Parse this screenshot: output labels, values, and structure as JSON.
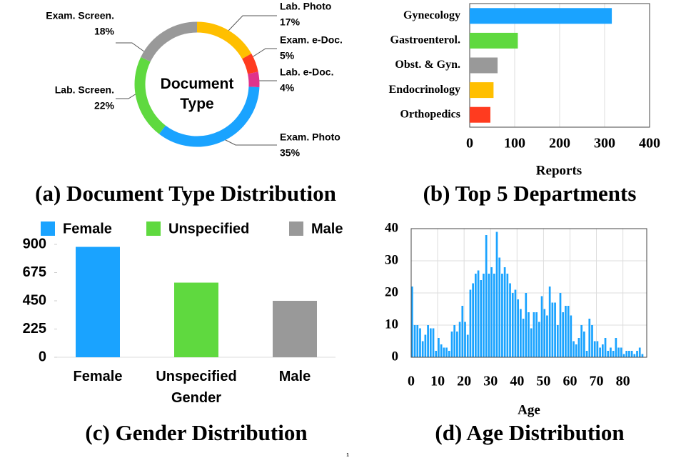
{
  "chart_data": [
    {
      "type": "pie",
      "title": "(a) Document Type Distribution",
      "center_text": "Document Type",
      "categories": [
        "Lab. Photo",
        "Exam. e-Doc.",
        "Lab. e-Doc.",
        "Exam. Photo",
        "Lab. Screen.",
        "Exam. Screen."
      ],
      "values": [
        17,
        5,
        4,
        35,
        22,
        18
      ],
      "value_labels": [
        "17%",
        "5%",
        "4%",
        "35%",
        "22%",
        "18%"
      ],
      "colors": [
        "#ffbf00",
        "#ff3b1f",
        "#e0338c",
        "#1aa3ff",
        "#5fd93f",
        "#999999"
      ]
    },
    {
      "type": "hbar",
      "title": "(b) Top 5 Departments",
      "xlabel": "Reports",
      "categories": [
        "Gynecology",
        "Gastroenterol.",
        "Obst. & Gyn.",
        "Endocrinology",
        "Orthopedics"
      ],
      "values": [
        316,
        107,
        62,
        53,
        46
      ],
      "colors": [
        "#1aa3ff",
        "#5fd93f",
        "#999999",
        "#ffbf00",
        "#ff3b1f"
      ],
      "xlim": [
        0,
        400
      ],
      "xticks": [
        0,
        100,
        200,
        300,
        400
      ],
      "grid": true
    },
    {
      "type": "bar",
      "title": "(c) Gender Distribution",
      "categories": [
        "Female",
        "Unspecified Gender",
        "Male"
      ],
      "values": [
        880,
        595,
        450
      ],
      "colors": [
        "#1aa3ff",
        "#5fd93f",
        "#999999"
      ],
      "legend": [
        "Female",
        "Unspecified",
        "Male"
      ],
      "ylim": [
        0,
        900
      ],
      "yticks": [
        0,
        225,
        450,
        675,
        900
      ]
    },
    {
      "type": "histogram",
      "title": "(d) Age Distribution",
      "xlabel": "Age",
      "color": "#1aa3ff",
      "bins": [
        0,
        1,
        2,
        3,
        4,
        5,
        6,
        7,
        8,
        9,
        10,
        11,
        12,
        13,
        14,
        15,
        16,
        17,
        18,
        19,
        20,
        21,
        22,
        23,
        24,
        25,
        26,
        27,
        28,
        29,
        30,
        31,
        32,
        33,
        34,
        35,
        36,
        37,
        38,
        39,
        40,
        41,
        42,
        43,
        44,
        45,
        46,
        47,
        48,
        49,
        50,
        51,
        52,
        53,
        54,
        55,
        56,
        57,
        58,
        59,
        60,
        61,
        62,
        63,
        64,
        65,
        66,
        67,
        68,
        69,
        70,
        71,
        72,
        73,
        74,
        75,
        76,
        77,
        78,
        79,
        80,
        81,
        82,
        83,
        84,
        85,
        86,
        87,
        88
      ],
      "values": [
        22,
        10,
        10,
        9,
        5,
        7,
        10,
        9,
        9,
        2,
        6,
        4,
        3,
        3,
        2,
        8,
        10,
        8,
        11,
        16,
        11,
        7,
        21,
        23,
        26,
        27,
        24,
        26,
        38,
        26,
        28,
        26,
        39,
        31,
        26,
        28,
        26,
        23,
        20,
        21,
        18,
        15,
        12,
        20,
        14,
        9,
        14,
        14,
        11,
        19,
        15,
        13,
        22,
        17,
        17,
        10,
        20,
        14,
        16,
        16,
        13,
        5,
        4,
        6,
        10,
        8,
        2,
        12,
        10,
        5,
        5,
        3,
        4,
        6,
        2,
        3,
        2,
        6,
        3,
        3,
        1,
        2,
        2,
        2,
        1,
        2,
        3,
        1
      ],
      "xlim": [
        0,
        89
      ],
      "xticks": [
        0,
        10,
        20,
        30,
        40,
        50,
        60,
        70,
        80
      ],
      "ylim": [
        0,
        40
      ],
      "yticks": [
        0,
        10,
        20,
        30,
        40
      ],
      "grid": true
    }
  ],
  "footer": "1"
}
